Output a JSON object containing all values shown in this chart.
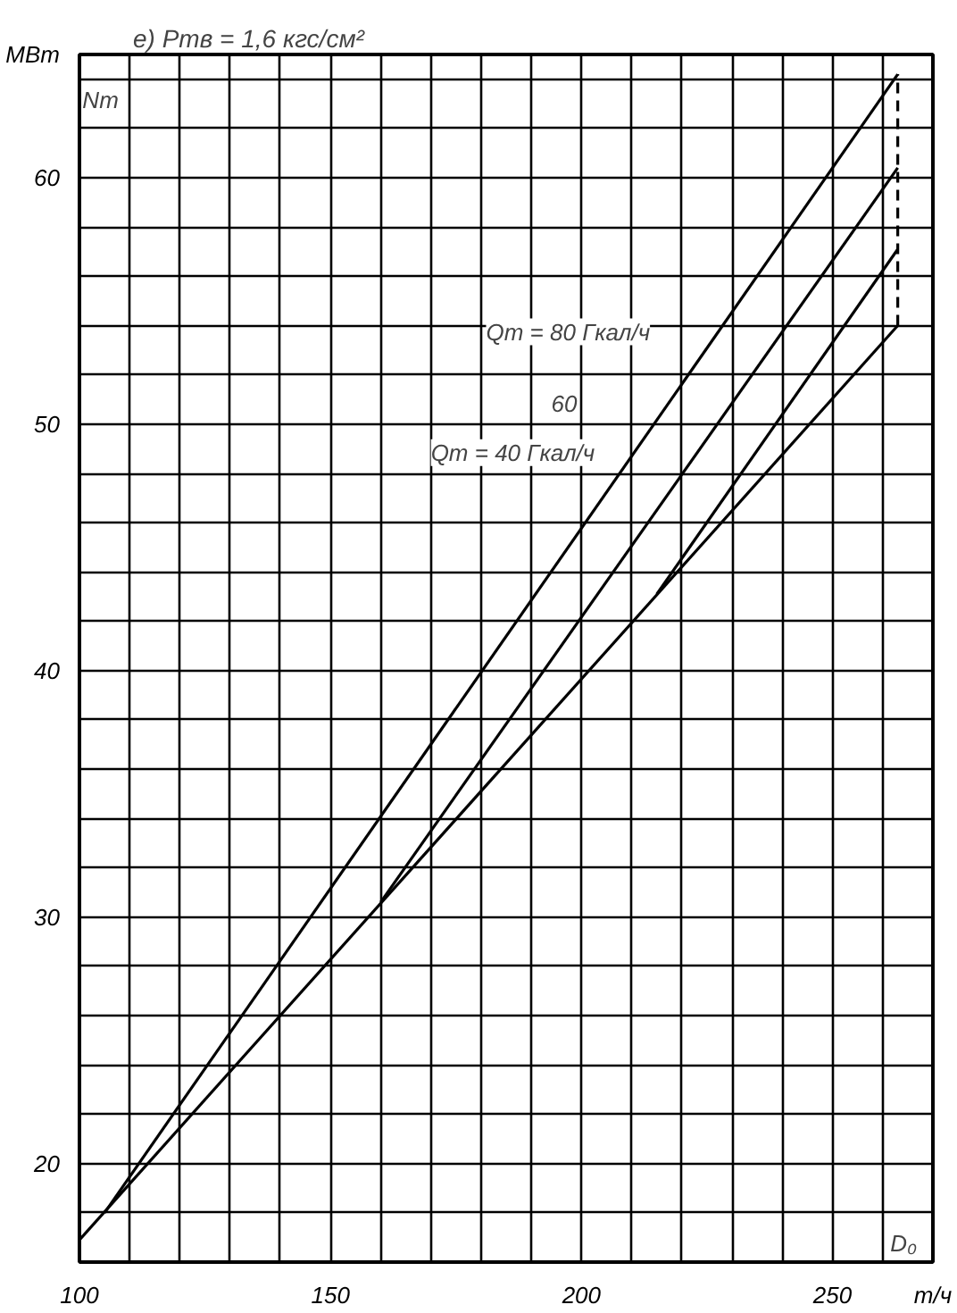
{
  "chart_data": {
    "type": "line",
    "title": "е) Pтв = 1,6 кгс/см²",
    "xlabel": "т/ч",
    "ylabel": "МВт",
    "xlim": [
      100,
      270
    ],
    "ylim": [
      16,
      65
    ],
    "xticks": [
      100,
      {
        "value": 110,
        "label": null
      },
      {
        "value": 120,
        "label": null
      },
      {
        "value": 130,
        "label": null
      },
      {
        "value": 140,
        "label": null
      },
      150,
      {
        "value": 160,
        "label": null
      },
      {
        "value": 170,
        "label": null
      },
      {
        "value": 180,
        "label": null
      },
      {
        "value": 190,
        "label": null
      },
      200,
      {
        "value": 210,
        "label": null
      },
      {
        "value": 220,
        "label": null
      },
      {
        "value": 230,
        "label": null
      },
      {
        "value": 240,
        "label": null
      },
      250,
      {
        "value": 260,
        "label": null
      }
    ],
    "yticks": [
      {
        "value": 16,
        "label": null
      },
      {
        "value": 18,
        "label": null
      },
      20,
      {
        "value": 22,
        "label": null
      },
      {
        "value": 24,
        "label": null
      },
      {
        "value": 26,
        "label": null
      },
      {
        "value": 28,
        "label": null
      },
      30,
      {
        "value": 32,
        "label": null
      },
      {
        "value": 34,
        "label": null
      },
      {
        "value": 36,
        "label": null
      },
      {
        "value": 38,
        "label": null
      },
      40,
      {
        "value": 42,
        "label": null
      },
      {
        "value": 44,
        "label": null
      },
      {
        "value": 46,
        "label": null
      },
      {
        "value": 48,
        "label": null
      },
      50,
      {
        "value": 52,
        "label": null
      },
      {
        "value": 54,
        "label": null
      },
      {
        "value": 56,
        "label": null
      },
      {
        "value": 58,
        "label": null
      },
      60,
      {
        "value": 62,
        "label": null
      },
      {
        "value": 64,
        "label": null
      }
    ],
    "grid": true,
    "series": [
      {
        "color": "#000000",
        "x": [
          100,
          263
        ],
        "values": [
          16.9,
          54.0
        ]
      },
      {
        "color": "#000000",
        "x": [
          105,
          263
        ],
        "values": [
          18.0,
          64.2
        ]
      },
      {
        "color": "#000000",
        "x": [
          160,
          263
        ],
        "values": [
          30.6,
          60.4
        ]
      },
      {
        "color": "#000000",
        "x": [
          215,
          263
        ],
        "values": [
          43.1,
          57.1
        ]
      },
      {
        "color": "#000000",
        "x": [
          263,
          263
        ],
        "values": [
          54.0,
          64.2
        ],
        "line_style": "dashed"
      }
    ],
    "annotations": [
      "Qт = 80 Гкал/ч",
      "60",
      "Qт = 40 Гкал/ч",
      "Nт",
      "D₀"
    ]
  }
}
